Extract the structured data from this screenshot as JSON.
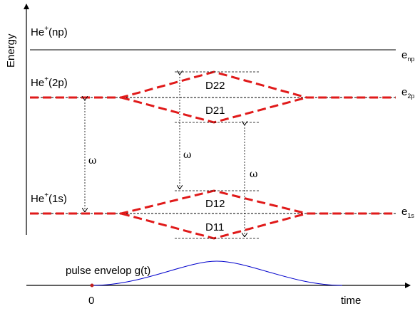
{
  "axes": {
    "energy_label": "Energy",
    "time_label": "time",
    "origin_label": "0"
  },
  "states": {
    "np": {
      "text": "He",
      "sup": "+",
      "suffix": "(np)"
    },
    "s2p": {
      "text": "He",
      "sup": "+",
      "suffix": "(2p)"
    },
    "s1s": {
      "text": "He",
      "sup": "+",
      "suffix": "(1s)"
    }
  },
  "energies": {
    "np": {
      "base": "e",
      "sub": "np"
    },
    "s2p": {
      "base": "e",
      "sub": "2p"
    },
    "s1s": {
      "base": "e",
      "sub": "1s"
    }
  },
  "dressed_states": [
    "D22",
    "D21",
    "D12",
    "D11"
  ],
  "transitions": {
    "omega": "ω"
  },
  "pulse_label": "pulse envelop g(t)",
  "colors": {
    "dressed": "#e01a1a",
    "pulse": "#0000cc",
    "axis": "#000000"
  }
}
